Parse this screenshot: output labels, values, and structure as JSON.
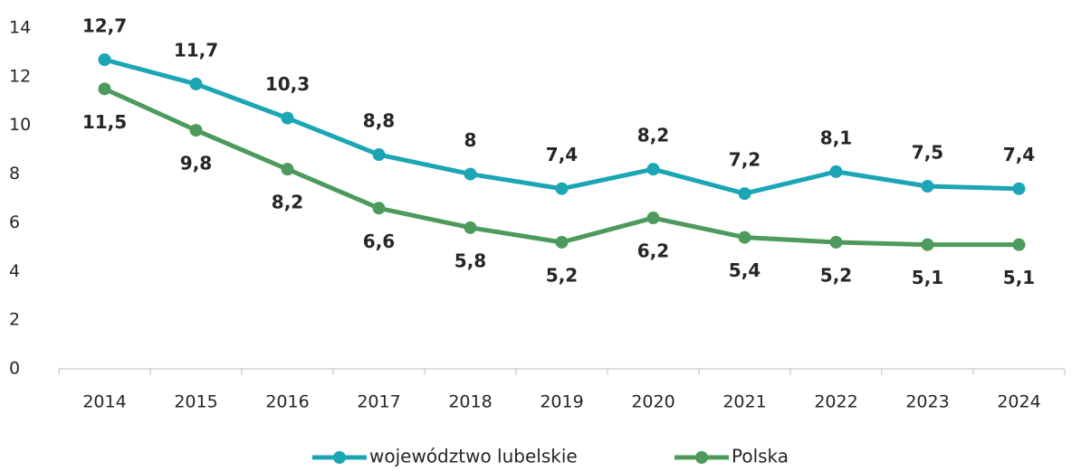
{
  "chart_data": {
    "type": "line",
    "categories": [
      "2014",
      "2015",
      "2016",
      "2017",
      "2018",
      "2019",
      "2020",
      "2021",
      "2022",
      "2023",
      "2024"
    ],
    "series": [
      {
        "name": "województwo lubelskie",
        "color": "#1ba5b5",
        "values": [
          12.7,
          11.7,
          10.3,
          8.8,
          8,
          7.4,
          8.2,
          7.2,
          8.1,
          7.5,
          7.4
        ],
        "value_labels": [
          "12,7",
          "11,7",
          "10,3",
          "8,8",
          "8",
          "7,4",
          "8,2",
          "7,2",
          "8,1",
          "7,5",
          "7,4"
        ]
      },
      {
        "name": "Polska",
        "color": "#4c9a5c",
        "values": [
          11.5,
          9.8,
          8.2,
          6.6,
          5.8,
          5.2,
          6.2,
          5.4,
          5.2,
          5.1,
          5.1
        ],
        "value_labels": [
          "11,5",
          "9,8",
          "8,2",
          "6,6",
          "5,8",
          "5,2",
          "6,2",
          "5,4",
          "5,2",
          "5,1",
          "5,1"
        ]
      }
    ],
    "ylim": [
      0,
      14
    ],
    "yticks": [
      0,
      2,
      4,
      6,
      8,
      10,
      12,
      14
    ],
    "grid": false,
    "legend": "bottom"
  }
}
